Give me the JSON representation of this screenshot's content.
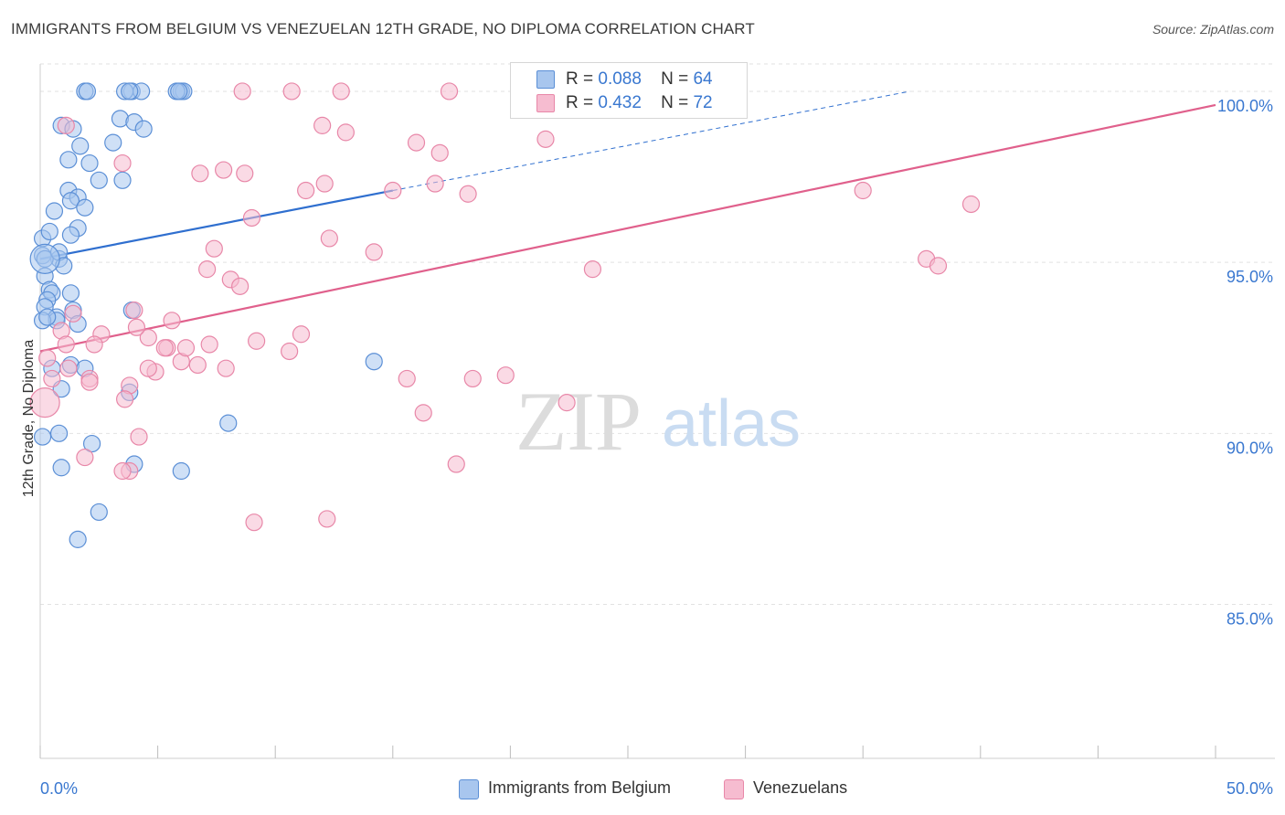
{
  "title": "IMMIGRANTS FROM BELGIUM VS VENEZUELAN 12TH GRADE, NO DIPLOMA CORRELATION CHART",
  "source": "Source: ZipAtlas.com",
  "watermark": {
    "zip": "ZIP",
    "atlas": "atlas"
  },
  "legend": {
    "r_label": "R =",
    "n_label": "N =",
    "rows": [
      {
        "r": "0.088",
        "n": "64"
      },
      {
        "r": "0.432",
        "n": "72"
      }
    ]
  },
  "colors": {
    "blue_fill": "#a8c6ee",
    "blue_stroke": "#5b8fd6",
    "blue_line": "#2f6fcf",
    "pink_fill": "#f6bcd0",
    "pink_stroke": "#e887a8",
    "pink_line": "#e0608c",
    "tick_label": "#3a78d0",
    "grid": "#e2e2e2"
  },
  "chart_data": {
    "type": "scatter",
    "title": "IMMIGRANTS FROM BELGIUM VS VENEZUELAN 12TH GRADE, NO DIPLOMA CORRELATION CHART",
    "xlabel": "",
    "ylabel": "12th Grade, No Diploma",
    "xlim": [
      0,
      50
    ],
    "ylim": [
      80.5,
      100.8
    ],
    "x_tick_labels": [
      {
        "value": 0,
        "label": "0.0%"
      },
      {
        "value": 50,
        "label": "50.0%"
      }
    ],
    "x_minor_ticks": [
      0,
      5,
      10,
      15,
      20,
      25,
      30,
      35,
      40,
      45,
      50
    ],
    "y_ticks": [
      {
        "value": 85,
        "label": "85.0%"
      },
      {
        "value": 90,
        "label": "90.0%"
      },
      {
        "value": 95,
        "label": "95.0%"
      },
      {
        "value": 100,
        "label": "100.0%"
      }
    ],
    "series": [
      {
        "name": "Immigrants from Belgium",
        "color": "#a8c6ee",
        "r": 0.088,
        "n": 64,
        "trend": {
          "x0": 0,
          "y0": 95.1,
          "x1": 15,
          "y1": 97.1,
          "dash_x1": 37,
          "dash_y1": 100.0
        },
        "x": [
          1.9,
          2.0,
          3.9,
          4.3,
          3.6,
          3.8,
          6.0,
          6.1,
          5.8,
          5.9,
          0.9,
          1.4,
          3.4,
          3.1,
          4.0,
          1.7,
          1.2,
          2.1,
          3.5,
          4.4,
          1.2,
          1.6,
          2.5,
          1.3,
          0.6,
          1.9,
          1.6,
          0.1,
          1.3,
          0.4,
          0.8,
          0.1,
          0.2,
          0.8,
          1.0,
          0.2,
          0.4,
          0.5,
          1.3,
          0.3,
          0.2,
          0.7,
          1.4,
          3.9,
          0.7,
          1.6,
          1.3,
          0.5,
          1.9,
          3.8,
          2.2,
          0.9,
          6.0,
          8.0,
          14.2,
          2.5,
          4.0,
          1.6,
          0.9,
          0.8,
          0.1,
          0.3,
          0.1,
          0.2
        ],
        "y": [
          100.0,
          100.0,
          100.0,
          100.0,
          100.0,
          100.0,
          100.0,
          100.0,
          100.0,
          100.0,
          99.0,
          98.9,
          99.2,
          98.5,
          99.1,
          98.4,
          98.0,
          97.9,
          97.4,
          98.9,
          97.1,
          96.9,
          97.4,
          96.8,
          96.5,
          96.6,
          96.0,
          95.7,
          95.8,
          95.9,
          95.1,
          95.2,
          95.1,
          95.3,
          94.9,
          94.6,
          94.2,
          94.1,
          94.1,
          93.9,
          93.7,
          93.4,
          93.6,
          93.6,
          93.3,
          93.2,
          92.0,
          91.9,
          91.9,
          91.2,
          89.7,
          89.0,
          88.9,
          90.3,
          92.1,
          87.7,
          89.1,
          86.9,
          91.3,
          90.0,
          93.3,
          93.4,
          89.9,
          95.1
        ],
        "sizes": [
          9,
          9,
          9,
          9,
          9,
          9,
          9,
          9,
          9,
          9,
          9,
          9,
          9,
          9,
          9,
          9,
          9,
          9,
          9,
          9,
          9,
          9,
          9,
          9,
          9,
          9,
          9,
          9,
          9,
          9,
          9,
          9,
          9,
          9,
          9,
          9,
          9,
          9,
          9,
          9,
          9,
          9,
          9,
          9,
          9,
          9,
          9,
          9,
          9,
          9,
          9,
          9,
          9,
          9,
          9,
          9,
          9,
          9,
          9,
          9,
          9,
          9,
          9,
          16
        ]
      },
      {
        "name": "Venezuelans",
        "color": "#f6bcd0",
        "r": 0.432,
        "n": 72,
        "trend": {
          "x0": 0,
          "y0": 92.4,
          "x1": 50,
          "y1": 99.6
        },
        "x": [
          8.6,
          10.7,
          12.8,
          17.4,
          0.2,
          1.1,
          12.0,
          13.0,
          16.0,
          17.0,
          3.5,
          6.8,
          7.8,
          8.7,
          11.3,
          12.1,
          15.0,
          16.8,
          18.2,
          21.5,
          35.0,
          39.6,
          9.0,
          12.3,
          14.2,
          23.5,
          7.4,
          7.1,
          8.1,
          8.5,
          1.4,
          0.9,
          2.6,
          2.3,
          4.6,
          4.1,
          5.6,
          4.0,
          5.4,
          7.2,
          9.2,
          10.6,
          11.1,
          6.7,
          6.0,
          7.9,
          15.6,
          19.8,
          22.4,
          37.7,
          38.2,
          2.1,
          1.2,
          5.3,
          6.2,
          4.9,
          4.6,
          3.8,
          2.1,
          3.6,
          17.7,
          1.9,
          3.8,
          9.1,
          12.2,
          18.4,
          16.3,
          4.2,
          3.5,
          0.3,
          0.5,
          1.1
        ],
        "y": [
          100.0,
          100.0,
          100.0,
          100.0,
          90.9,
          99.0,
          99.0,
          98.8,
          98.5,
          98.2,
          97.9,
          97.6,
          97.7,
          97.6,
          97.1,
          97.3,
          97.1,
          97.3,
          97.0,
          98.6,
          97.1,
          96.7,
          96.3,
          95.7,
          95.3,
          94.8,
          95.4,
          94.8,
          94.5,
          94.3,
          93.5,
          93.0,
          92.9,
          92.6,
          92.8,
          93.1,
          93.3,
          93.6,
          92.5,
          92.6,
          92.7,
          92.4,
          92.9,
          92.0,
          92.1,
          91.9,
          91.6,
          91.7,
          90.9,
          95.1,
          94.9,
          91.6,
          91.9,
          92.5,
          92.5,
          91.8,
          91.9,
          91.4,
          91.5,
          91.0,
          89.1,
          89.3,
          88.9,
          87.4,
          87.5,
          91.6,
          90.6,
          89.9,
          88.9,
          92.2,
          91.6,
          92.6
        ],
        "sizes": [
          9,
          9,
          9,
          9,
          16,
          9,
          9,
          9,
          9,
          9,
          9,
          9,
          9,
          9,
          9,
          9,
          9,
          9,
          9,
          9,
          9,
          9,
          9,
          9,
          9,
          9,
          9,
          9,
          9,
          9,
          9,
          9,
          9,
          9,
          9,
          9,
          9,
          9,
          9,
          9,
          9,
          9,
          9,
          9,
          9,
          9,
          9,
          9,
          9,
          9,
          9,
          9,
          9,
          9,
          9,
          9,
          9,
          9,
          9,
          9,
          9,
          9,
          9,
          9,
          9,
          9,
          9,
          9,
          9,
          9,
          9,
          9
        ]
      }
    ]
  },
  "bottom_legend": [
    {
      "label": "Immigrants from Belgium"
    },
    {
      "label": "Venezuelans"
    }
  ]
}
